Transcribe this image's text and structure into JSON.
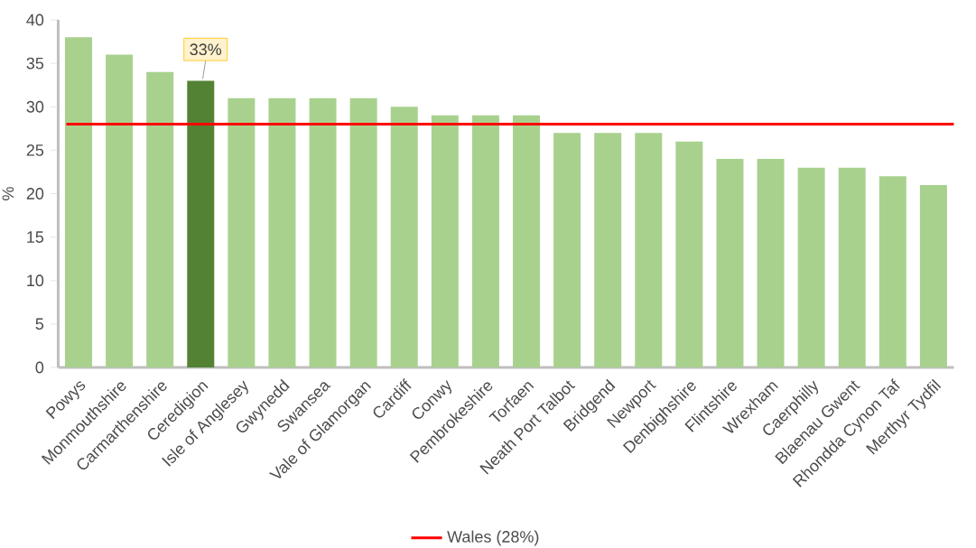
{
  "chart_data": {
    "type": "bar",
    "ylabel": "%",
    "categories": [
      "Powys",
      "Monmouthshire",
      "Carmarthenshire",
      "Ceredigion",
      "Isle of Anglesey",
      "Gwynedd",
      "Swansea",
      "Vale of Glamorgan",
      "Cardiff",
      "Conwy",
      "Pembrokeshire",
      "Torfaen",
      "Neath Port Talbot",
      "Bridgend",
      "Newport",
      "Denbighshire",
      "Flintshire",
      "Wrexham",
      "Caerphilly",
      "Blaenau Gwent",
      "Rhondda Cynon Taf",
      "Merthyr Tydfil"
    ],
    "values": [
      38,
      36,
      34,
      33,
      31,
      31,
      31,
      31,
      30,
      29,
      29,
      29,
      27,
      27,
      27,
      26,
      24,
      24,
      23,
      23,
      22,
      21
    ],
    "colors": [
      "#a9d18e",
      "#a9d18e",
      "#a9d18e",
      "#548235",
      "#a9d18e",
      "#a9d18e",
      "#a9d18e",
      "#a9d18e",
      "#a9d18e",
      "#a9d18e",
      "#a9d18e",
      "#a9d18e",
      "#a9d18e",
      "#a9d18e",
      "#a9d18e",
      "#a9d18e",
      "#a9d18e",
      "#a9d18e",
      "#a9d18e",
      "#a9d18e",
      "#a9d18e",
      "#a9d18e"
    ],
    "ylim": [
      0,
      40
    ],
    "yticks": [
      0,
      5,
      10,
      15,
      20,
      25,
      30,
      35,
      40
    ],
    "ref_lines": [
      {
        "axis": "y",
        "value": 28,
        "label": "Wales (28%)",
        "color": "#ff0000"
      }
    ],
    "annotations": [
      {
        "text": "33%",
        "x": "Ceredigion",
        "y": 33
      }
    ],
    "legend": "bottom",
    "grid": false
  }
}
